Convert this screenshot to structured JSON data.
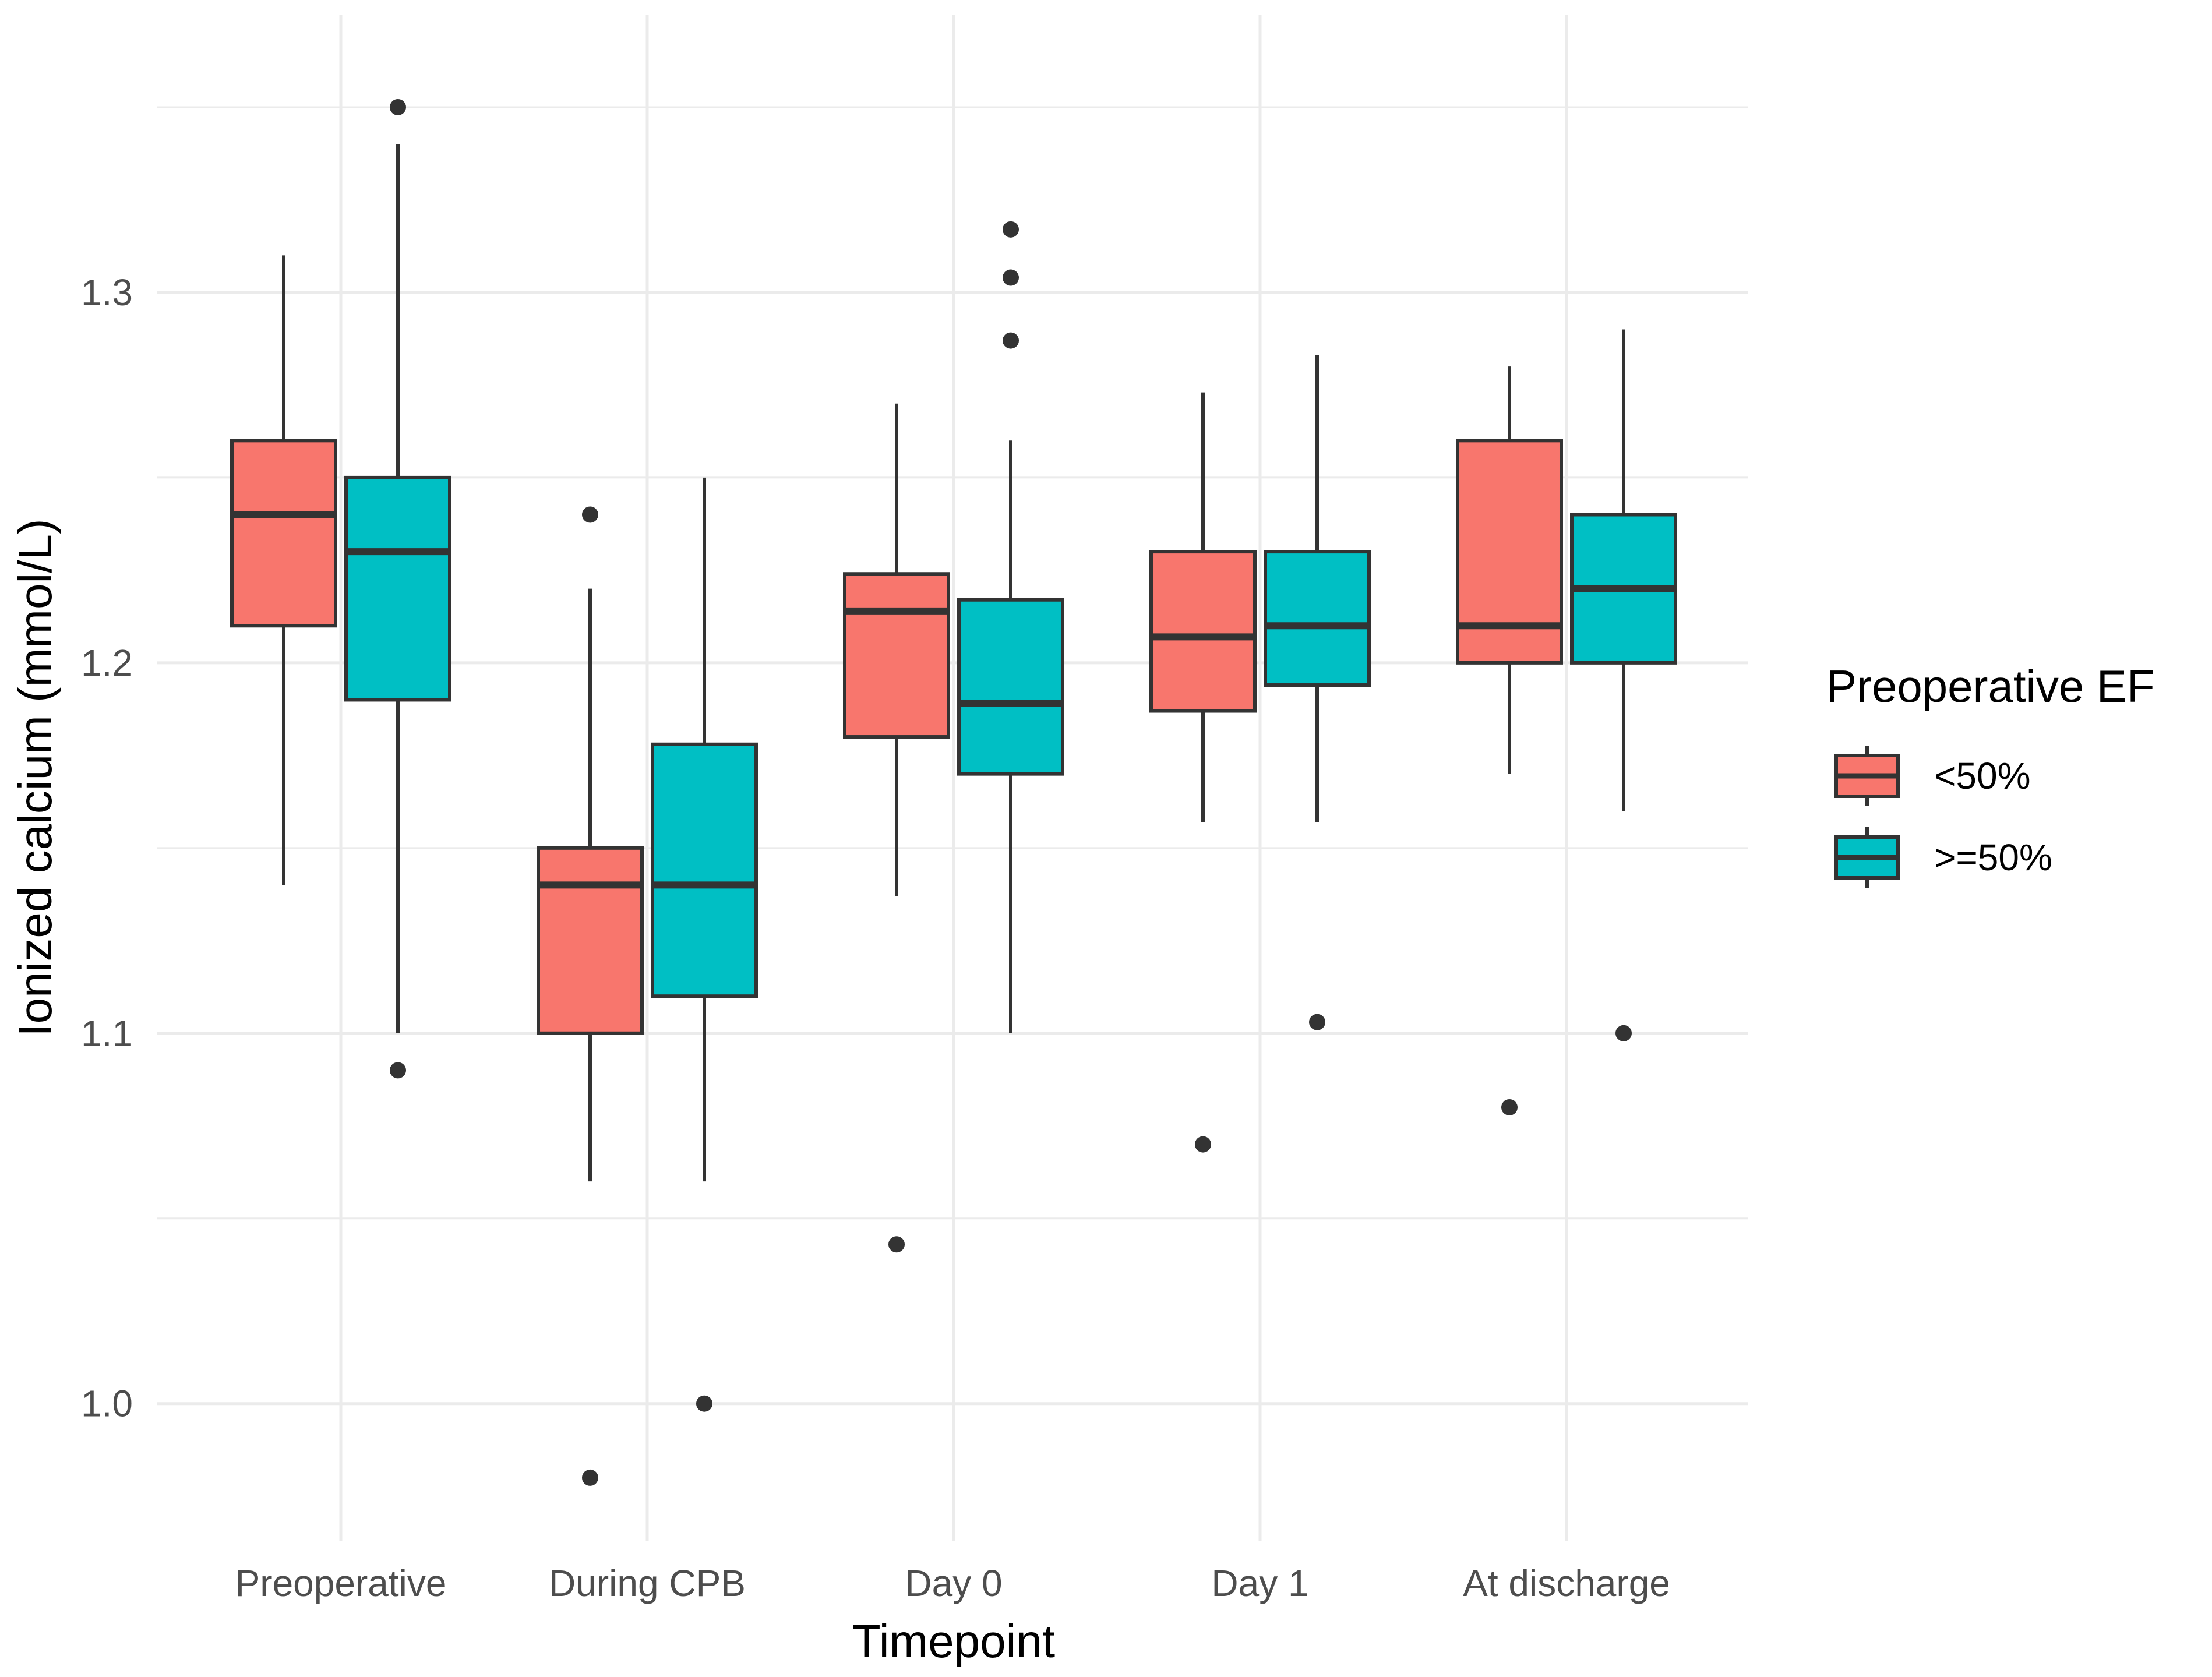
{
  "chart_data": {
    "type": "boxplot",
    "xlabel": "Timepoint",
    "ylabel": "Ionized calcium (mmol/L)",
    "ylim": [
      0.963,
      1.375
    ],
    "y_ticks": [
      1.0,
      1.1,
      1.2,
      1.3
    ],
    "y_tick_labels": [
      "1.0",
      "1.1",
      "1.2",
      "1.3"
    ],
    "grid": true,
    "legend": {
      "title": "Preoperative EF",
      "position": "right",
      "entries": [
        {
          "label": "<50%",
          "color": "#F8766D"
        },
        {
          "label": ">=50%",
          "color": "#00BFC4"
        }
      ]
    },
    "categories": [
      "Preoperative",
      "During CPB",
      "Day 0",
      "Day 1",
      "At discharge"
    ],
    "series": [
      {
        "name": "<50%",
        "color": "#F8766D",
        "boxes": [
          {
            "category": "Preoperative",
            "whisker_low": 1.14,
            "q1": 1.21,
            "median": 1.24,
            "q3": 1.26,
            "whisker_high": 1.31,
            "outliers": []
          },
          {
            "category": "During CPB",
            "whisker_low": 1.06,
            "q1": 1.1,
            "median": 1.14,
            "q3": 1.15,
            "whisker_high": 1.22,
            "outliers": [
              1.24,
              0.98
            ]
          },
          {
            "category": "Day 0",
            "whisker_low": 1.137,
            "q1": 1.18,
            "median": 1.214,
            "q3": 1.224,
            "whisker_high": 1.27,
            "outliers": [
              1.043
            ]
          },
          {
            "category": "Day 1",
            "whisker_low": 1.157,
            "q1": 1.187,
            "median": 1.207,
            "q3": 1.23,
            "whisker_high": 1.273,
            "outliers": [
              1.07
            ]
          },
          {
            "category": "At discharge",
            "whisker_low": 1.17,
            "q1": 1.2,
            "median": 1.21,
            "q3": 1.26,
            "whisker_high": 1.28,
            "outliers": [
              1.08
            ]
          }
        ]
      },
      {
        "name": ">=50%",
        "color": "#00BFC4",
        "boxes": [
          {
            "category": "Preoperative",
            "whisker_low": 1.1,
            "q1": 1.19,
            "median": 1.23,
            "q3": 1.25,
            "whisker_high": 1.34,
            "outliers": [
              1.35,
              1.09
            ]
          },
          {
            "category": "During CPB",
            "whisker_low": 1.06,
            "q1": 1.11,
            "median": 1.14,
            "q3": 1.178,
            "whisker_high": 1.25,
            "outliers": [
              1.0
            ]
          },
          {
            "category": "Day 0",
            "whisker_low": 1.1,
            "q1": 1.17,
            "median": 1.189,
            "q3": 1.217,
            "whisker_high": 1.26,
            "outliers": [
              1.317,
              1.304,
              1.287
            ]
          },
          {
            "category": "Day 1",
            "whisker_low": 1.157,
            "q1": 1.194,
            "median": 1.21,
            "q3": 1.23,
            "whisker_high": 1.283,
            "outliers": [
              1.103
            ]
          },
          {
            "category": "At discharge",
            "whisker_low": 1.16,
            "q1": 1.2,
            "median": 1.22,
            "q3": 1.24,
            "whisker_high": 1.29,
            "outliers": [
              1.1
            ]
          }
        ]
      }
    ]
  }
}
